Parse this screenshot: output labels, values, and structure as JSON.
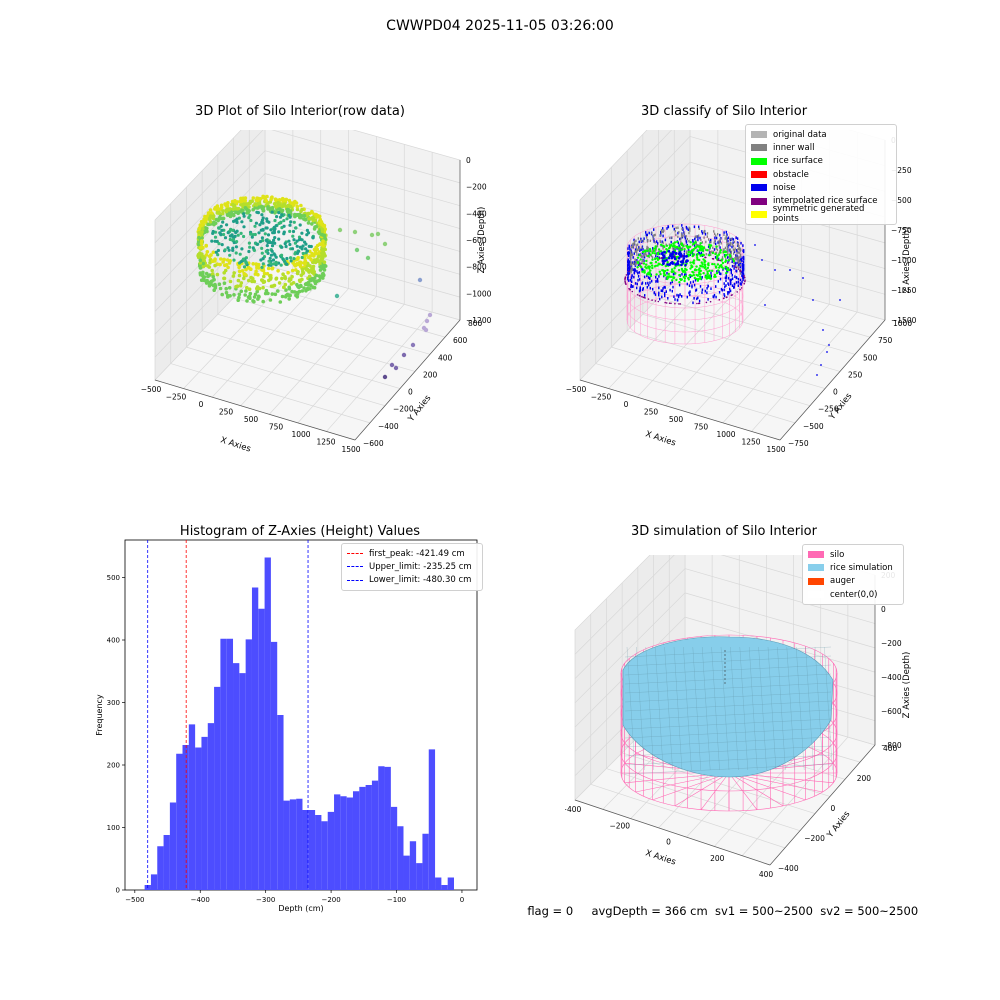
{
  "suptitle": "CWWPD04 2025-11-05 03:26:00",
  "footer": {
    "flag": "flag = 0",
    "avg_depth": "avgDepth = 366 cm",
    "sv1": "sv1 = 500~2500",
    "sv2": "sv2 = 500~2500"
  },
  "panel_raw": {
    "title": "3D Plot of Silo Interior(row data)",
    "xlabel": "X Axies",
    "ylabel": "Y Axies",
    "zlabel": "Z Axies (Depth)",
    "xticks": [
      "−500",
      "−250",
      "0",
      "250",
      "500",
      "750",
      "1000",
      "1250",
      "1500"
    ],
    "yticks": [
      "−600",
      "−400",
      "−200",
      "0",
      "200",
      "400",
      "600",
      "800"
    ],
    "zticks": [
      "0",
      "−200",
      "−400",
      "−600",
      "−800",
      "−1000",
      "−1200"
    ]
  },
  "panel_classify": {
    "title": "3D classify of Silo Interior",
    "xlabel": "X Axies",
    "ylabel": "Y Axies",
    "zlabel": "Z Axies (Depth)",
    "xticks": [
      "−500",
      "−250",
      "0",
      "250",
      "500",
      "750",
      "1000",
      "1250",
      "1500"
    ],
    "yticks": [
      "−750",
      "−500",
      "−250",
      "0",
      "250",
      "500",
      "750",
      "1000"
    ],
    "zticks": [
      "0",
      "−250",
      "−500",
      "−750",
      "−1000",
      "−1250",
      "−1500"
    ],
    "legend": [
      {
        "label": "original data",
        "color": "#b3b3b3"
      },
      {
        "label": "inner wall",
        "color": "#808080"
      },
      {
        "label": "rice surface",
        "color": "#00ff00"
      },
      {
        "label": "obstacle",
        "color": "#ff0000"
      },
      {
        "label": "noise",
        "color": "#0000ee"
      },
      {
        "label": "interpolated rice surface",
        "color": "#800080"
      },
      {
        "label": "symmetric generated points",
        "color": "#ffff00"
      }
    ]
  },
  "panel_sim": {
    "title": "3D simulation of Silo Interior",
    "xlabel": "X Axies",
    "ylabel": "Y Axies",
    "zlabel": "Z Axies (Depth)",
    "xticks": [
      "−400",
      "−200",
      "0",
      "200",
      "400"
    ],
    "yticks": [
      "−400",
      "−200",
      "0",
      "200",
      "400"
    ],
    "zticks": [
      "200",
      "0",
      "−200",
      "−400",
      "−600",
      "−800"
    ],
    "legend": [
      {
        "label": "silo",
        "color": "#ff69b4"
      },
      {
        "label": "rice simulation",
        "color": "#87ceeb"
      },
      {
        "label": "auger",
        "color": "#ff4500"
      },
      {
        "label": "center(0,0)",
        "color": "#ffffff"
      }
    ]
  },
  "chart_data": {
    "type": "bar",
    "title": "Histogram of Z-Axies (Height) Values",
    "xlabel": "Depth (cm)",
    "ylabel": "Frequency",
    "bar_color": "#4d4dff",
    "xlim": [
      -515,
      23
    ],
    "ylim": [
      0,
      560
    ],
    "xticks": [
      -500,
      -400,
      -300,
      -200,
      -100,
      0
    ],
    "yticks": [
      0,
      100,
      200,
      300,
      400,
      500
    ],
    "bin_start": -485,
    "bin_width": 9.65,
    "values": [
      8,
      25,
      70,
      88,
      140,
      218,
      232,
      265,
      228,
      245,
      267,
      325,
      402,
      402,
      363,
      347,
      401,
      484,
      450,
      532,
      397,
      280,
      143,
      145,
      146,
      128,
      128,
      120,
      110,
      125,
      153,
      150,
      148,
      158,
      165,
      168,
      175,
      198,
      197,
      133,
      102,
      55,
      78,
      43,
      90,
      225,
      20,
      8,
      20
    ],
    "vlines": [
      {
        "x": -421.49,
        "color": "#ff0000",
        "label": "first_peak: -421.49 cm"
      },
      {
        "x": -235.25,
        "color": "#0000ff",
        "label": "Upper_limit: -235.25 cm"
      },
      {
        "x": -480.3,
        "color": "#0000ff",
        "label": "Lower_limit: -480.30 cm"
      }
    ],
    "legend_position": "top-right"
  }
}
